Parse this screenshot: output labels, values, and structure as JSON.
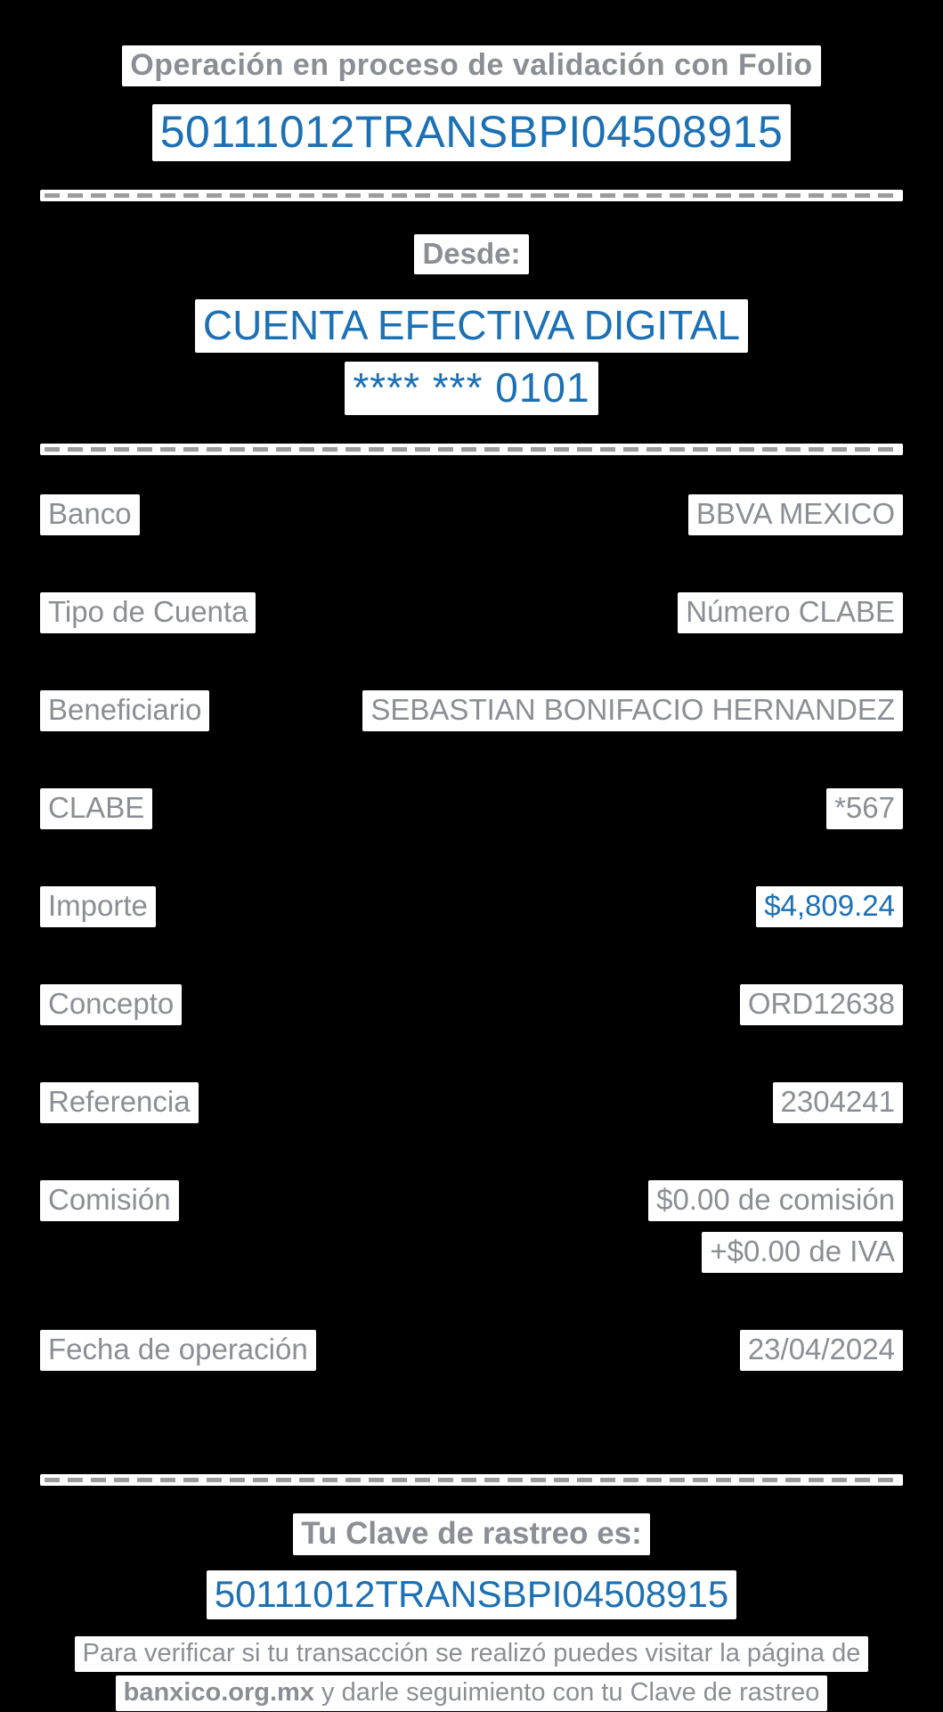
{
  "colors": {
    "background": "#000000",
    "text_gray": "#8b8e94",
    "accent_blue": "#1c70b4",
    "highlight_white": "#ffffff",
    "separator_dash_gray": "#9c9c9c"
  },
  "header": {
    "title": "Operación en proceso de validación con Folio",
    "folio": "50111012TRANSBPI04508915"
  },
  "from_section": {
    "heading": "Desde:",
    "account_name": "CUENTA EFECTIVA DIGITAL",
    "account_mask": "**** *** 0101"
  },
  "details": {
    "rows": [
      {
        "label": "Banco",
        "value": "BBVA MEXICO"
      },
      {
        "label": "Tipo de Cuenta",
        "value": "Número CLABE"
      },
      {
        "label": "Beneficiario",
        "value": "SEBASTIAN BONIFACIO HERNANDEZ"
      },
      {
        "label": "CLABE",
        "value": "*567"
      },
      {
        "label": "Importe",
        "value": "$4,809.24"
      },
      {
        "label": "Concepto",
        "value": "ORD12638"
      },
      {
        "label": "Referencia",
        "value": "2304241"
      },
      {
        "label": "Comisión",
        "value": "$0.00 de comisión",
        "value2": "+$0.00 de IVA"
      },
      {
        "label": "Fecha de operación",
        "value": "23/04/2024"
      }
    ]
  },
  "footer": {
    "heading": "Tu Clave de rastreo es:",
    "tracking_key": "50111012TRANSBPI04508915",
    "note_prefix": "Para verificar si tu transacción se realizó puedes visitar la página de",
    "note_link": "banxico.org.mx",
    "note_suffix": " y darle seguimiento con tu Clave de rastreo"
  }
}
